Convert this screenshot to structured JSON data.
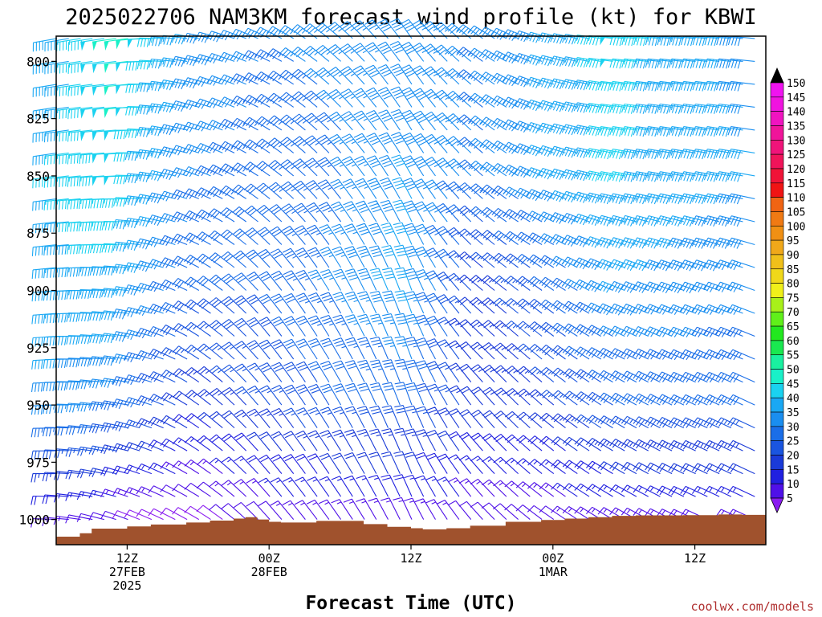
{
  "chart_data": {
    "type": "wind-barb-profile",
    "title": "2025022706 NAM3KM forecast wind profile (kt) for KBWI",
    "xlabel": "Forecast Time (UTC)",
    "ylabel": "",
    "credit": "coolwx.com/models",
    "y_axis": {
      "unit": "hPa",
      "inverted": true,
      "range": [
        789,
        1011
      ],
      "ticks": [
        800,
        825,
        850,
        875,
        900,
        925,
        950,
        975,
        1000
      ],
      "tick_labels": [
        "800",
        "825",
        "850",
        "875",
        "900",
        "925",
        "950",
        "975",
        "1000"
      ]
    },
    "x_axis": {
      "unit": "forecast hour",
      "range": [
        0,
        60
      ],
      "ticks": [
        {
          "hour": 6,
          "line1": "12Z",
          "line2": "27FEB",
          "line3": "2025"
        },
        {
          "hour": 18,
          "line1": "00Z",
          "line2": "28FEB",
          "line3": ""
        },
        {
          "hour": 30,
          "line1": "12Z",
          "line2": "",
          "line3": ""
        },
        {
          "hour": 42,
          "line1": "00Z",
          "line2": "1MAR",
          "line3": ""
        },
        {
          "hour": 54,
          "line1": "12Z",
          "line2": "",
          "line3": ""
        }
      ]
    },
    "colorbar": {
      "label_unit": "kt",
      "levels": [
        5,
        10,
        15,
        20,
        25,
        30,
        35,
        40,
        45,
        50,
        55,
        60,
        65,
        70,
        75,
        80,
        85,
        90,
        95,
        100,
        105,
        110,
        115,
        120,
        125,
        130,
        135,
        140,
        145,
        150
      ],
      "colors": [
        "#8a1cf0",
        "#4f10e8",
        "#2020e0",
        "#1a3ad8",
        "#1a55e0",
        "#1a6ee8",
        "#1a8ef0",
        "#1aa8f4",
        "#1ad2f0",
        "#19f0c8",
        "#19f0a0",
        "#19e850",
        "#22e81f",
        "#60f01a",
        "#a8f01a",
        "#f0f01a",
        "#f0d81a",
        "#f0c01a",
        "#f0a81a",
        "#f09014",
        "#f07a14",
        "#f06414",
        "#f01414",
        "#f01438",
        "#f0145a",
        "#f0147a",
        "#f0149a",
        "#f014c0",
        "#f014e0",
        "#f014f0"
      ],
      "over_color": "#000000",
      "under_color": "#8a1cf0"
    },
    "terrain": {
      "color": "#a0522d",
      "surface_pressure_by_hour": [
        {
          "hour": 0,
          "p": 1007.5
        },
        {
          "hour": 2,
          "p": 1006.0
        },
        {
          "hour": 3,
          "p": 1004.0
        },
        {
          "hour": 6,
          "p": 1003.0
        },
        {
          "hour": 8,
          "p": 1002.2
        },
        {
          "hour": 11,
          "p": 1001.3
        },
        {
          "hour": 13,
          "p": 1000.5
        },
        {
          "hour": 15,
          "p": 999.6
        },
        {
          "hour": 16,
          "p": 999.0
        },
        {
          "hour": 17,
          "p": 1000.0
        },
        {
          "hour": 18,
          "p": 1001.0
        },
        {
          "hour": 19,
          "p": 1001.3
        },
        {
          "hour": 22,
          "p": 1000.6
        },
        {
          "hour": 24,
          "p": 1000.6
        },
        {
          "hour": 26,
          "p": 1002.0
        },
        {
          "hour": 28,
          "p": 1003.2
        },
        {
          "hour": 30,
          "p": 1003.8
        },
        {
          "hour": 31,
          "p": 1004.3
        },
        {
          "hour": 33,
          "p": 1003.8
        },
        {
          "hour": 35,
          "p": 1002.7
        },
        {
          "hour": 38,
          "p": 1001.0
        },
        {
          "hour": 41,
          "p": 1000.2
        },
        {
          "hour": 43,
          "p": 999.6
        },
        {
          "hour": 45,
          "p": 999.0
        },
        {
          "hour": 47,
          "p": 998.4
        },
        {
          "hour": 49,
          "p": 998.2
        },
        {
          "hour": 53,
          "p": 998.1
        },
        {
          "hour": 56,
          "p": 997.8
        },
        {
          "hour": 58,
          "p": 998.0
        },
        {
          "hour": 60,
          "p": 998.0
        }
      ]
    },
    "barb_pressure_levels": [
      790,
      800,
      810,
      820,
      830,
      840,
      850,
      860,
      870,
      880,
      890,
      900,
      910,
      920,
      930,
      940,
      950,
      960,
      970,
      980,
      990,
      1000
    ],
    "barb_hours": [
      0,
      1,
      2,
      3,
      4,
      5,
      6,
      7,
      8,
      9,
      10,
      11,
      12,
      13,
      14,
      15,
      16,
      17,
      18,
      19,
      20,
      21,
      22,
      23,
      24,
      25,
      26,
      27,
      28,
      29,
      30,
      31,
      32,
      33,
      34,
      35,
      36,
      37,
      38,
      39,
      40,
      41,
      42,
      43,
      44,
      45,
      46,
      47,
      48,
      49,
      50,
      51,
      52,
      53,
      54,
      55,
      56,
      57,
      58,
      59
    ],
    "wind_keyframes": [
      {
        "hour": 0,
        "dir": [
          260,
          262,
          265,
          268,
          272
        ],
        "spd": [
          42,
          45,
          44,
          38,
          14
        ]
      },
      {
        "hour": 6,
        "dir": [
          262,
          268,
          275,
          280,
          290
        ],
        "spd": [
          52,
          48,
          44,
          34,
          10
        ]
      },
      {
        "hour": 12,
        "dir": [
          280,
          290,
          300,
          305,
          300
        ],
        "spd": [
          40,
          36,
          30,
          22,
          8
        ]
      },
      {
        "hour": 18,
        "dir": [
          295,
          305,
          320,
          322,
          318
        ],
        "spd": [
          35,
          32,
          30,
          26,
          12
        ]
      },
      {
        "hour": 24,
        "dir": [
          310,
          320,
          330,
          330,
          325
        ],
        "spd": [
          36,
          34,
          36,
          30,
          14
        ]
      },
      {
        "hour": 30,
        "dir": [
          325,
          330,
          340,
          340,
          335
        ],
        "spd": [
          38,
          40,
          42,
          32,
          14
        ]
      },
      {
        "hour": 36,
        "dir": [
          305,
          312,
          310,
          320,
          318
        ],
        "spd": [
          35,
          34,
          22,
          22,
          12
        ]
      },
      {
        "hour": 42,
        "dir": [
          285,
          290,
          305,
          310,
          305
        ],
        "spd": [
          40,
          40,
          30,
          24,
          12
        ]
      },
      {
        "hour": 48,
        "dir": [
          275,
          280,
          292,
          300,
          300
        ],
        "spd": [
          48,
          46,
          40,
          30,
          14
        ]
      },
      {
        "hour": 54,
        "dir": [
          275,
          280,
          290,
          295,
          295
        ],
        "spd": [
          42,
          42,
          38,
          32,
          14
        ]
      },
      {
        "hour": 60,
        "dir": [
          275,
          280,
          290,
          295,
          295
        ],
        "spd": [
          38,
          40,
          36,
          30,
          14
        ]
      }
    ],
    "wind_keyframe_levels": [
      790,
      850,
      900,
      950,
      1000
    ],
    "grid": false,
    "legend_position": "right"
  }
}
